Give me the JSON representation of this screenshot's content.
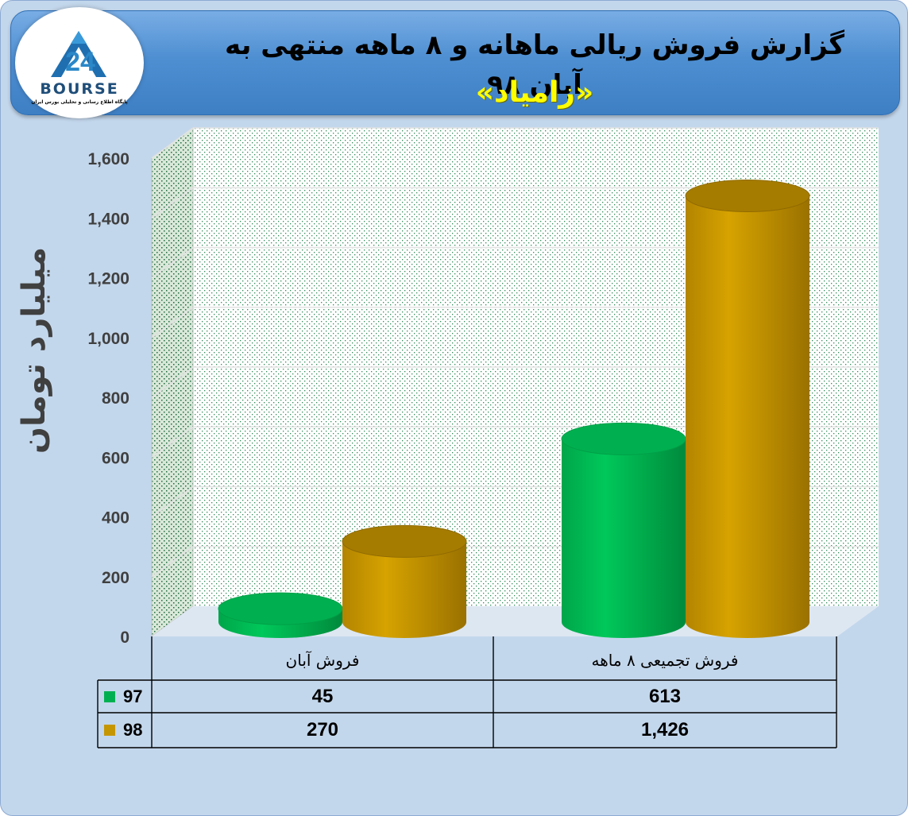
{
  "title": {
    "line1": "گزارش فروش ریالی ماهانه و ۸ ماهه منتهی به آبان ۹۸",
    "line2": "«زامیاد»"
  },
  "logo": {
    "wordmark": "BOURSE",
    "numeral": "24",
    "tagline": "پایگاه اطلاع رسانی و تحلیلی بورس ایران",
    "icon": "bourse24-logo"
  },
  "colors": {
    "series_97": "#00b050",
    "series_98": "#c59600",
    "banner": "#4e8fd2",
    "title_highlight": "#ffff00",
    "background": "#c3d7ec"
  },
  "chart_data": {
    "type": "bar",
    "style": "3d-cylinder",
    "title": "گزارش فروش ریالی ماهانه و ۸ ماهه منتهی به آبان ۹۸ «زامیاد»",
    "ylabel": "میلیارد تومان",
    "xlabel": "",
    "ylim": [
      0,
      1600
    ],
    "yticks": [
      "0",
      "200",
      "400",
      "600",
      "800",
      "1,000",
      "1,200",
      "1,400",
      "1,600"
    ],
    "grid": true,
    "categories": [
      "فروش آبان",
      "فروش تجمیعی ۸ ماهه"
    ],
    "series": [
      {
        "name": "97",
        "values": [
          45,
          613
        ],
        "display": [
          "45",
          "613"
        ],
        "color": "#00b050"
      },
      {
        "name": "98",
        "values": [
          270,
          1426
        ],
        "display": [
          "270",
          "1,426"
        ],
        "color": "#c59600"
      }
    ],
    "legend": "data-table-left"
  }
}
